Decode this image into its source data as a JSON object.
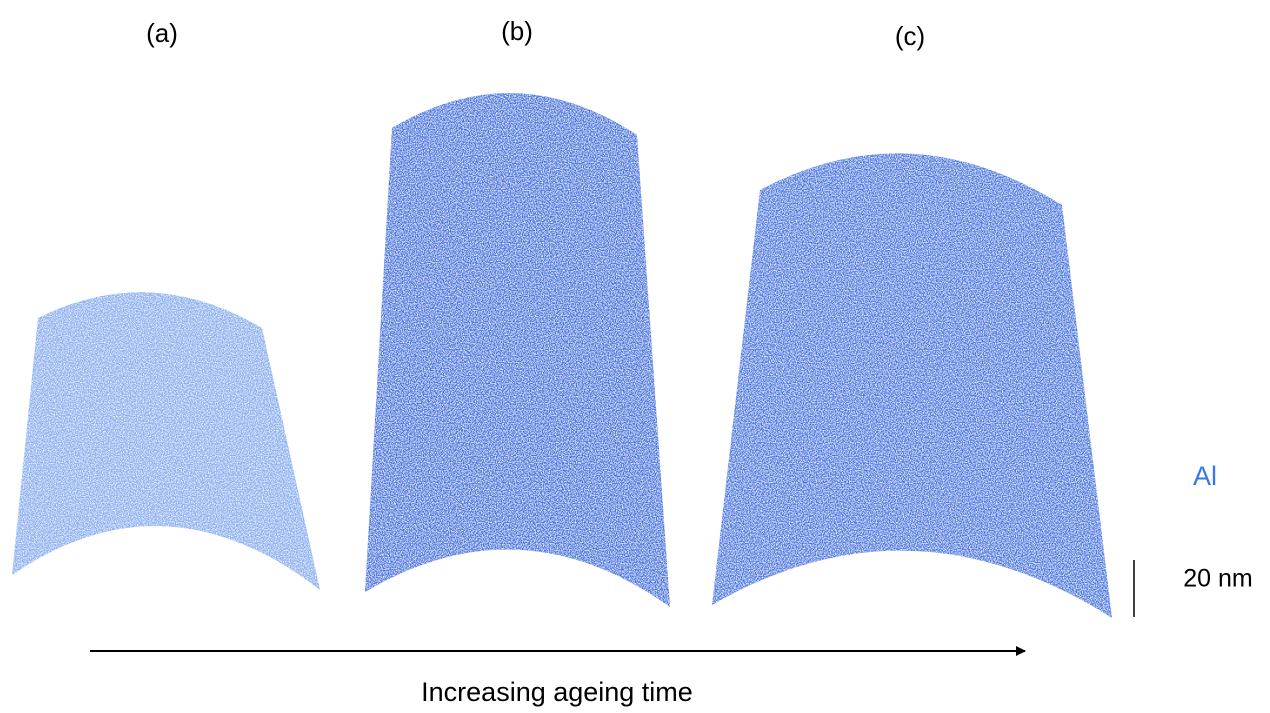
{
  "panels": [
    {
      "label": "(a)"
    },
    {
      "label": "(b)"
    },
    {
      "label": "(c)"
    }
  ],
  "element_label": "Al",
  "scale_bar": "20 nm",
  "arrow_label": "Increasing ageing time"
}
